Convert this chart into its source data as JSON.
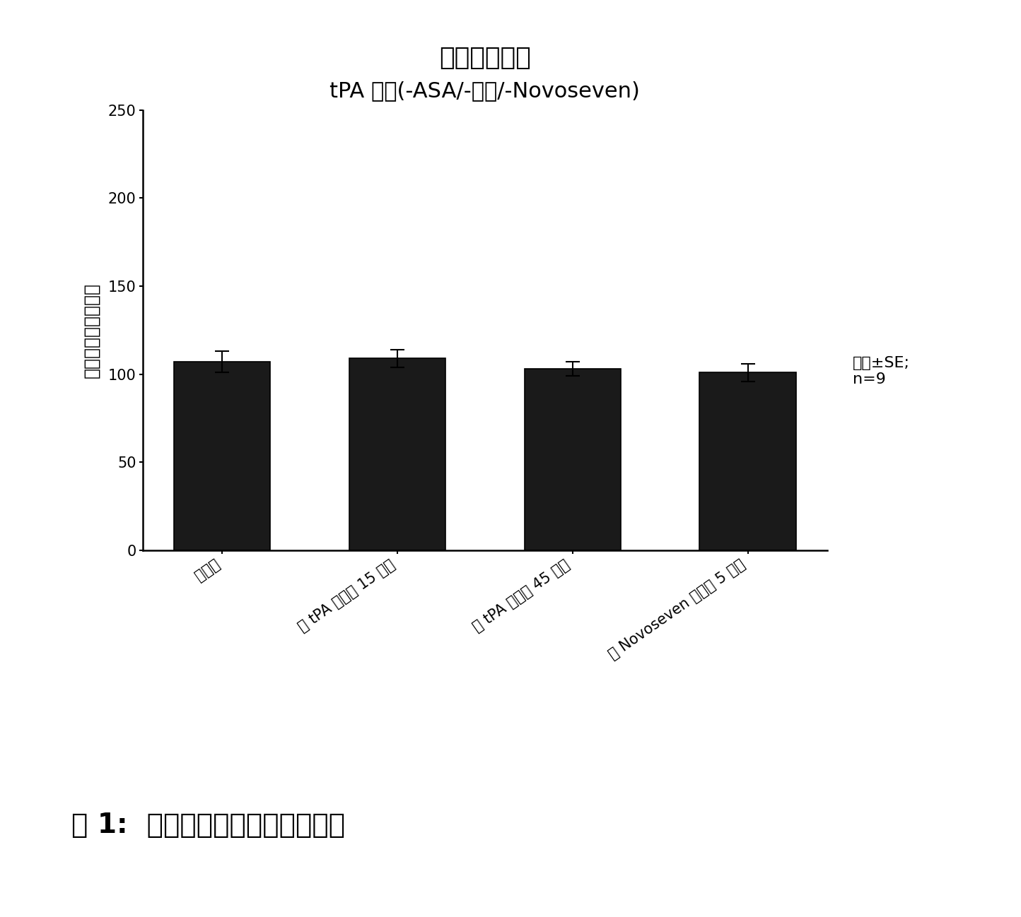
{
  "title_line1": "模板出血时间",
  "title_line2": "tPA 载体(-ASA/-肝素/-Novoseven)",
  "ylabel": "模板出血时间［秒］",
  "categories": [
    "输注前",
    "用 tPA 载体后 15 分钟",
    "用 tPA 载体后 45 分钟",
    "用 Novoseven 载体后 5 分钟"
  ],
  "values": [
    107,
    109,
    103,
    101
  ],
  "errors": [
    6,
    5,
    4,
    5
  ],
  "bar_color": "#1a1a1a",
  "bar_edge_color": "#000000",
  "ylim": [
    0,
    250
  ],
  "yticks": [
    0,
    50,
    100,
    150,
    200,
    250
  ],
  "annotation": "均值±SE;\nn=9",
  "caption": "图 1:  载体处理的动物的出血时间",
  "background_color": "#ffffff",
  "title1_fontsize": 26,
  "title2_fontsize": 22,
  "ylabel_fontsize": 18,
  "tick_fontsize": 15,
  "caption_fontsize": 28,
  "annotation_fontsize": 16
}
